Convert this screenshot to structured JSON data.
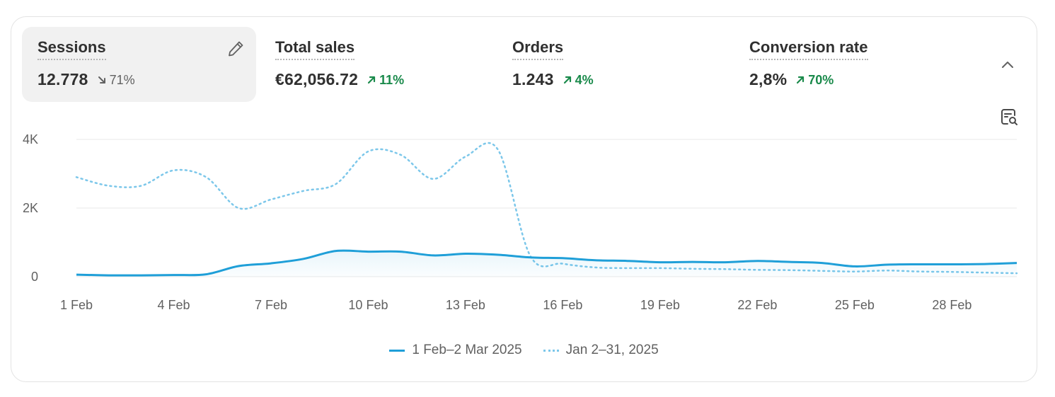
{
  "metrics": [
    {
      "label": "Sessions",
      "value": "12.778",
      "change": "71%",
      "direction": "down",
      "active": true
    },
    {
      "label": "Total sales",
      "value": "€62,056.72",
      "change": "11%",
      "direction": "up",
      "active": false
    },
    {
      "label": "Orders",
      "value": "1.243",
      "change": "4%",
      "direction": "up",
      "active": false
    },
    {
      "label": "Conversion rate",
      "value": "2,8%",
      "change": "70%",
      "direction": "up",
      "active": false
    }
  ],
  "icons": {
    "edit": "pencil-icon",
    "collapse": "chevron-up-icon",
    "analyze": "analyze-report-icon"
  },
  "colors": {
    "current_series": "#1f9fd8",
    "previous_series": "#7cc7ea",
    "positive_change": "#1a8a4b",
    "active_metric_bg": "#f1f1f1"
  },
  "chart_data": {
    "type": "line",
    "y_ticks": [
      "0",
      "2K",
      "4K"
    ],
    "ylim": [
      0,
      4000
    ],
    "x_tick_labels": [
      "1 Feb",
      "4 Feb",
      "7 Feb",
      "10 Feb",
      "13 Feb",
      "16 Feb",
      "19 Feb",
      "22 Feb",
      "25 Feb",
      "28 Feb"
    ],
    "grid": true,
    "legend_position": "bottom",
    "series": [
      {
        "name": "1 Feb–2 Mar 2025",
        "style": "solid",
        "x": [
          "1 Feb",
          "2 Feb",
          "3 Feb",
          "4 Feb",
          "5 Feb",
          "6 Feb",
          "7 Feb",
          "8 Feb",
          "9 Feb",
          "10 Feb",
          "11 Feb",
          "12 Feb",
          "13 Feb",
          "14 Feb",
          "15 Feb",
          "16 Feb",
          "17 Feb",
          "18 Feb",
          "19 Feb",
          "20 Feb",
          "21 Feb",
          "22 Feb",
          "23 Feb",
          "24 Feb",
          "25 Feb",
          "26 Feb",
          "27 Feb",
          "28 Feb",
          "1 Mar",
          "2 Mar"
        ],
        "values": [
          60,
          40,
          40,
          50,
          70,
          310,
          390,
          520,
          750,
          730,
          730,
          620,
          670,
          640,
          560,
          540,
          480,
          460,
          420,
          430,
          420,
          460,
          430,
          400,
          300,
          350,
          360,
          360,
          370,
          400
        ]
      },
      {
        "name": "Jan 2–31, 2025",
        "style": "dotted",
        "x": [
          "1 Feb",
          "2 Feb",
          "3 Feb",
          "4 Feb",
          "5 Feb",
          "6 Feb",
          "7 Feb",
          "8 Feb",
          "9 Feb",
          "10 Feb",
          "11 Feb",
          "12 Feb",
          "13 Feb",
          "14 Feb",
          "15 Feb",
          "16 Feb",
          "17 Feb",
          "18 Feb",
          "19 Feb",
          "20 Feb",
          "21 Feb",
          "22 Feb",
          "23 Feb",
          "24 Feb",
          "25 Feb",
          "26 Feb",
          "27 Feb",
          "28 Feb",
          "1 Mar",
          "2 Mar"
        ],
        "values": [
          2900,
          2650,
          2650,
          3100,
          2900,
          2000,
          2250,
          2500,
          2700,
          3650,
          3550,
          2850,
          3500,
          3700,
          600,
          380,
          270,
          250,
          250,
          230,
          220,
          200,
          190,
          170,
          150,
          180,
          150,
          140,
          120,
          100
        ]
      }
    ]
  }
}
